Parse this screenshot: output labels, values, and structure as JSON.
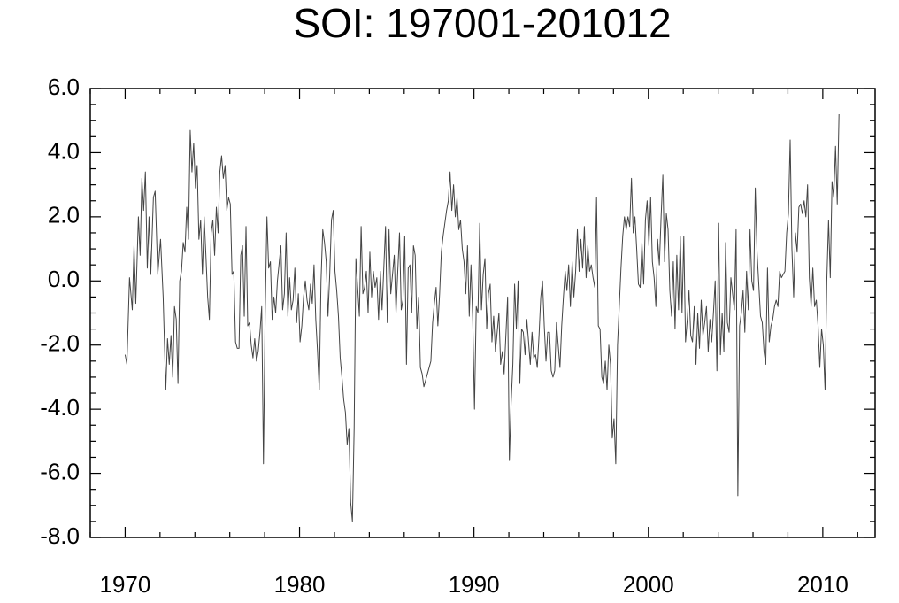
{
  "chart_data": {
    "type": "line",
    "title": "SOI: 197001-201012",
    "color": "#444444",
    "minor_ticks": true,
    "xlim": [
      1968,
      2013
    ],
    "xticks": [
      1970,
      1980,
      1990,
      2000,
      2010
    ],
    "ylim": [
      -8,
      6
    ],
    "yticks": [
      {
        "value": -8,
        "label": "-8.0"
      },
      {
        "value": -6,
        "label": "-6.0"
      },
      {
        "value": -4,
        "label": "-4.0"
      },
      {
        "value": -2,
        "label": "-2.0"
      },
      {
        "value": 0,
        "label": "0.0"
      },
      {
        "value": 2,
        "label": "2.0"
      },
      {
        "value": 4,
        "label": "4.0"
      },
      {
        "value": 6,
        "label": "6.0"
      }
    ],
    "x": [
      1970.0,
      1970.1,
      1970.25,
      1970.41,
      1970.51,
      1970.61,
      1970.76,
      1970.86,
      1970.96,
      1971.06,
      1971.16,
      1971.27,
      1971.37,
      1971.47,
      1971.62,
      1971.72,
      1971.87,
      1972.03,
      1972.18,
      1972.33,
      1972.43,
      1972.53,
      1972.63,
      1972.73,
      1972.83,
      1972.93,
      1973.03,
      1973.13,
      1973.23,
      1973.33,
      1973.43,
      1973.53,
      1973.63,
      1973.73,
      1973.83,
      1973.93,
      1974.03,
      1974.13,
      1974.23,
      1974.33,
      1974.43,
      1974.53,
      1974.63,
      1974.73,
      1974.83,
      1974.93,
      1975.03,
      1975.13,
      1975.23,
      1975.33,
      1975.43,
      1975.53,
      1975.63,
      1975.73,
      1975.83,
      1975.93,
      1976.03,
      1976.13,
      1976.23,
      1976.33,
      1976.43,
      1976.53,
      1976.63,
      1976.73,
      1976.83,
      1976.93,
      1977.03,
      1977.13,
      1977.23,
      1977.33,
      1977.43,
      1977.53,
      1977.63,
      1977.73,
      1977.83,
      1977.93,
      1978.03,
      1978.13,
      1978.23,
      1978.33,
      1978.43,
      1978.53,
      1978.63,
      1978.73,
      1978.93,
      1979.03,
      1979.13,
      1979.23,
      1979.33,
      1979.43,
      1979.53,
      1979.63,
      1979.73,
      1979.83,
      1979.93,
      1980.03,
      1980.13,
      1980.23,
      1980.33,
      1980.43,
      1980.53,
      1980.63,
      1980.73,
      1980.83,
      1980.93,
      1981.03,
      1981.13,
      1981.23,
      1981.33,
      1981.43,
      1981.53,
      1981.63,
      1981.73,
      1981.83,
      1981.93,
      1982.03,
      1982.13,
      1982.23,
      1982.33,
      1982.43,
      1982.53,
      1982.63,
      1982.73,
      1982.83,
      1982.93,
      1983.03,
      1983.13,
      1983.23,
      1983.33,
      1983.43,
      1983.53,
      1983.63,
      1983.73,
      1983.83,
      1983.93,
      1984.03,
      1984.13,
      1984.23,
      1984.33,
      1984.43,
      1984.53,
      1984.63,
      1984.73,
      1984.83,
      1984.93,
      1985.03,
      1985.13,
      1985.23,
      1985.43,
      1985.53,
      1985.63,
      1985.73,
      1985.83,
      1985.93,
      1986.03,
      1986.13,
      1986.23,
      1986.33,
      1986.43,
      1986.53,
      1986.63,
      1986.73,
      1986.83,
      1986.93,
      1987.03,
      1987.13,
      1987.23,
      1987.33,
      1987.43,
      1987.53,
      1987.63,
      1987.73,
      1987.83,
      1987.93,
      1988.03,
      1988.13,
      1988.23,
      1988.33,
      1988.43,
      1988.53,
      1988.63,
      1988.73,
      1988.83,
      1988.93,
      1989.03,
      1989.13,
      1989.23,
      1989.33,
      1989.43,
      1989.53,
      1989.63,
      1989.73,
      1989.83,
      1989.93,
      1990.03,
      1990.13,
      1990.23,
      1990.33,
      1990.43,
      1990.53,
      1990.63,
      1990.73,
      1990.83,
      1990.93,
      1991.03,
      1991.13,
      1991.23,
      1991.33,
      1991.43,
      1991.53,
      1991.63,
      1991.73,
      1991.93,
      1992.03,
      1992.13,
      1992.23,
      1992.33,
      1992.43,
      1992.53,
      1992.63,
      1992.73,
      1992.83,
      1992.93,
      1993.03,
      1993.13,
      1993.23,
      1993.33,
      1993.43,
      1993.53,
      1993.63,
      1993.73,
      1993.83,
      1993.93,
      1994.03,
      1994.13,
      1994.23,
      1994.33,
      1994.43,
      1994.53,
      1994.63,
      1994.73,
      1994.83,
      1994.93,
      1995.03,
      1995.13,
      1995.23,
      1995.33,
      1995.43,
      1995.53,
      1995.63,
      1995.73,
      1995.83,
      1995.93,
      1996.03,
      1996.13,
      1996.23,
      1996.33,
      1996.43,
      1996.53,
      1996.63,
      1996.73,
      1996.83,
      1996.93,
      1997.03,
      1997.13,
      1997.23,
      1997.33,
      1997.43,
      1997.53,
      1997.63,
      1997.73,
      1997.83,
      1997.93,
      1998.03,
      1998.13,
      1998.23,
      1998.43,
      1998.53,
      1998.63,
      1998.73,
      1998.83,
      1998.93,
      1999.03,
      1999.13,
      1999.23,
      1999.33,
      1999.43,
      1999.53,
      1999.63,
      1999.73,
      1999.83,
      1999.93,
      2000.03,
      2000.13,
      2000.23,
      2000.33,
      2000.43,
      2000.53,
      2000.63,
      2000.73,
      2000.83,
      2000.93,
      2001.03,
      2001.13,
      2001.23,
      2001.33,
      2001.43,
      2001.53,
      2001.63,
      2001.73,
      2001.83,
      2001.93,
      2002.03,
      2002.13,
      2002.23,
      2002.33,
      2002.43,
      2002.53,
      2002.63,
      2002.73,
      2002.83,
      2002.93,
      2003.03,
      2003.13,
      2003.23,
      2003.33,
      2003.43,
      2003.53,
      2003.63,
      2003.73,
      2003.83,
      2003.93,
      2004.03,
      2004.13,
      2004.23,
      2004.33,
      2004.43,
      2004.53,
      2004.63,
      2004.73,
      2004.93,
      2005.03,
      2005.13,
      2005.23,
      2005.33,
      2005.43,
      2005.53,
      2005.63,
      2005.73,
      2005.83,
      2005.93,
      2006.03,
      2006.13,
      2006.23,
      2006.33,
      2006.43,
      2006.53,
      2006.63,
      2006.73,
      2006.83,
      2006.93,
      2007.03,
      2007.13,
      2007.23,
      2007.33,
      2007.43,
      2007.53,
      2007.63,
      2007.73,
      2007.83,
      2007.93,
      2008.03,
      2008.13,
      2008.23,
      2008.33,
      2008.43,
      2008.53,
      2008.63,
      2008.73,
      2008.83,
      2008.93,
      2009.03,
      2009.13,
      2009.23,
      2009.33,
      2009.43,
      2009.53,
      2009.63,
      2009.73,
      2009.83,
      2009.93,
      2010.03,
      2010.13,
      2010.23,
      2010.33,
      2010.43,
      2010.53,
      2010.63,
      2010.73,
      2010.83,
      2010.93
    ],
    "values": [
      -2.3,
      -2.6,
      0.1,
      -0.9,
      1.1,
      -0.7,
      2.0,
      0.8,
      3.2,
      2.2,
      3.4,
      0.4,
      2.0,
      0.2,
      2.6,
      2.8,
      0.2,
      1.3,
      -0.5,
      -3.4,
      -1.8,
      -2.6,
      -1.7,
      -3.0,
      -0.8,
      -1.2,
      -3.2,
      0.0,
      0.3,
      1.2,
      0.9,
      2.3,
      1.3,
      4.7,
      3.4,
      4.3,
      2.9,
      3.6,
      1.3,
      1.9,
      0.2,
      2.0,
      0.8,
      -0.5,
      -1.2,
      1.5,
      1.9,
      0.8,
      2.3,
      1.5,
      3.4,
      3.9,
      3.2,
      3.6,
      2.2,
      2.6,
      2.4,
      0.2,
      0.3,
      -1.9,
      -2.1,
      -2.1,
      0.8,
      1.1,
      -1.1,
      1.7,
      -1.4,
      -1.3,
      -2.0,
      -2.4,
      -1.8,
      -2.5,
      -2.2,
      -1.6,
      -0.8,
      -5.7,
      -1.0,
      2.0,
      0.4,
      0.6,
      -1.2,
      -0.5,
      -1.0,
      0.0,
      1.1,
      -0.9,
      -0.4,
      1.5,
      -1.1,
      0.1,
      -0.9,
      -0.6,
      0.4,
      -1.3,
      -0.4,
      -1.9,
      -1.4,
      -0.5,
      0.0,
      -0.6,
      -0.9,
      -0.1,
      -0.7,
      0.5,
      -1.2,
      -2.2,
      -3.4,
      0.0,
      1.6,
      1.2,
      0.6,
      -1.1,
      0.2,
      1.9,
      2.2,
      0.3,
      -0.3,
      -1.1,
      -2.4,
      -3.0,
      -3.7,
      -4.1,
      -5.1,
      -4.6,
      -6.9,
      -7.5,
      -4.6,
      0.7,
      -0.2,
      -1.1,
      1.7,
      -0.4,
      -0.2,
      0.3,
      -1.0,
      0.9,
      -0.5,
      0.3,
      -0.2,
      0.1,
      -1.2,
      0.3,
      -0.9,
      0.4,
      1.7,
      -1.3,
      1.6,
      -0.4,
      0.8,
      -1.0,
      0.3,
      1.5,
      -0.9,
      -0.6,
      1.4,
      -2.6,
      0.4,
      0.5,
      -1.0,
      1.1,
      0.8,
      -1.5,
      -0.5,
      -2.7,
      -2.9,
      -3.3,
      -3.1,
      -2.9,
      -2.7,
      -2.5,
      -1.3,
      -0.7,
      -0.2,
      -1.4,
      -0.4,
      0.9,
      1.4,
      1.8,
      2.2,
      2.5,
      3.4,
      2.2,
      3.0,
      2.0,
      2.6,
      1.6,
      1.9,
      1.0,
      0.6,
      -0.4,
      1.1,
      -1.1,
      0.5,
      -1.2,
      -4.0,
      -0.8,
      -1.0,
      1.8,
      -0.9,
      0.2,
      0.7,
      -1.5,
      -0.4,
      -0.1,
      -1.9,
      -1.1,
      -2.2,
      -1.6,
      -1.0,
      -2.6,
      -2.2,
      -2.9,
      -0.5,
      -5.6,
      -3.8,
      -2.6,
      -0.1,
      -1.5,
      0.0,
      -3.2,
      -1.5,
      -1.6,
      -2.3,
      -1.2,
      -1.9,
      -2.6,
      -1.6,
      -2.4,
      -2.3,
      -2.7,
      -1.7,
      -0.5,
      0.0,
      -1.4,
      -2.5,
      -1.6,
      -1.6,
      -2.8,
      -3.0,
      -2.8,
      -1.3,
      -2.0,
      -2.7,
      -1.4,
      -0.5,
      0.3,
      -0.3,
      0.5,
      -0.8,
      0.6,
      -0.5,
      0.3,
      1.6,
      0.3,
      1.3,
      0.4,
      1.7,
      0.1,
      1.1,
      0.3,
      0.5,
      0.1,
      -0.2,
      2.6,
      -1.4,
      -1.5,
      -3.0,
      -3.2,
      -2.5,
      -3.4,
      -2.0,
      -2.6,
      -4.9,
      -4.3,
      -5.7,
      -2.0,
      0.4,
      1.4,
      2.0,
      1.6,
      2.0,
      1.7,
      3.2,
      1.5,
      2.0,
      1.0,
      -0.1,
      -0.2,
      1.2,
      -0.1,
      1.9,
      2.5,
      1.1,
      2.6,
      0.6,
      0.1,
      -0.8,
      1.3,
      0.5,
      2.0,
      3.3,
      0.6,
      2.1,
      1.6,
      -0.3,
      -1.1,
      0.6,
      -1.5,
      0.8,
      -0.9,
      1.4,
      -1.0,
      1.4,
      -1.9,
      -1.2,
      -0.3,
      -1.7,
      -1.9,
      -0.8,
      -2.6,
      -1.0,
      -2.1,
      -0.6,
      -1.7,
      -1.3,
      -0.8,
      -2.2,
      -1.2,
      -1.9,
      -1.0,
      0.0,
      -2.8,
      1.8,
      -2.3,
      -1.0,
      -2.2,
      1.2,
      -1.3,
      -1.6,
      0.1,
      -0.9,
      1.6,
      -6.7,
      -1.4,
      -1.0,
      -0.3,
      -1.6,
      0.3,
      -0.9,
      1.6,
      0.0,
      -0.3,
      2.9,
      0.9,
      -0.1,
      -1.1,
      -1.3,
      -2.2,
      -2.6,
      0.4,
      -1.9,
      -1.4,
      -1.2,
      -0.8,
      -0.6,
      -0.8,
      0.3,
      0.1,
      0.2,
      0.3,
      1.5,
      2.1,
      4.4,
      1.0,
      -0.5,
      1.5,
      0.9,
      2.3,
      2.4,
      2.1,
      2.5,
      2.0,
      3.0,
      0.1,
      -0.8,
      0.4,
      -0.8,
      -0.6,
      -1.4,
      -2.7,
      -1.5,
      -2.0,
      -3.4,
      0.0,
      1.9,
      0.1,
      3.1,
      2.6,
      4.2,
      2.4,
      5.2
    ]
  }
}
